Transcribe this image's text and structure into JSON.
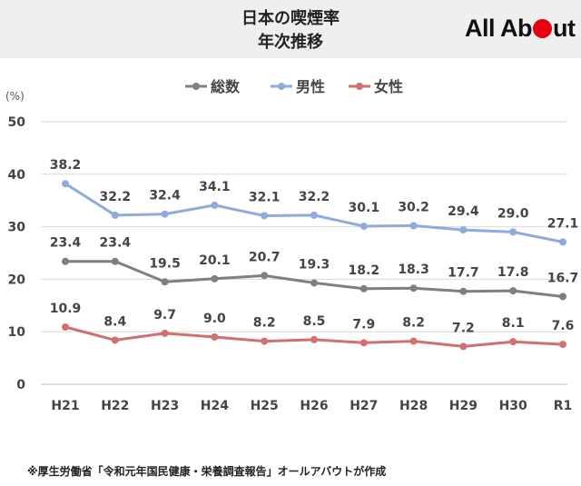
{
  "header": {
    "title_line1": "日本の喫煙率",
    "title_line2": "年次推移",
    "logo_text_a": "All Ab",
    "logo_text_b": "ut"
  },
  "footnote": "※厚生労働省「令和元年国民健康・栄養調査報告」オールアバウトが作成",
  "colors": {
    "total": "#7f7f7f",
    "male": "#8faadc",
    "female": "#d07070",
    "logo_accent": "#e60012"
  },
  "chart_data": {
    "type": "line",
    "categories": [
      "H21",
      "H22",
      "H23",
      "H24",
      "H25",
      "H26",
      "H27",
      "H28",
      "H29",
      "H30",
      "R1"
    ],
    "ylim": [
      0,
      50
    ],
    "yticks": [
      0,
      10,
      20,
      30,
      40,
      50
    ],
    "ylabel": "(%)",
    "xlabel": "",
    "grid": true,
    "legend_position": "top-center",
    "series": [
      {
        "key": "total",
        "name": "総数",
        "values": [
          23.4,
          23.4,
          19.5,
          20.1,
          20.7,
          19.3,
          18.2,
          18.3,
          17.7,
          17.8,
          16.7
        ]
      },
      {
        "key": "male",
        "name": "男性",
        "values": [
          38.2,
          32.2,
          32.4,
          34.1,
          32.1,
          32.2,
          30.1,
          30.2,
          29.4,
          29.0,
          27.1
        ]
      },
      {
        "key": "female",
        "name": "女性",
        "values": [
          10.9,
          8.4,
          9.7,
          9.0,
          8.2,
          8.5,
          7.9,
          8.2,
          7.2,
          8.1,
          7.6
        ]
      }
    ]
  }
}
